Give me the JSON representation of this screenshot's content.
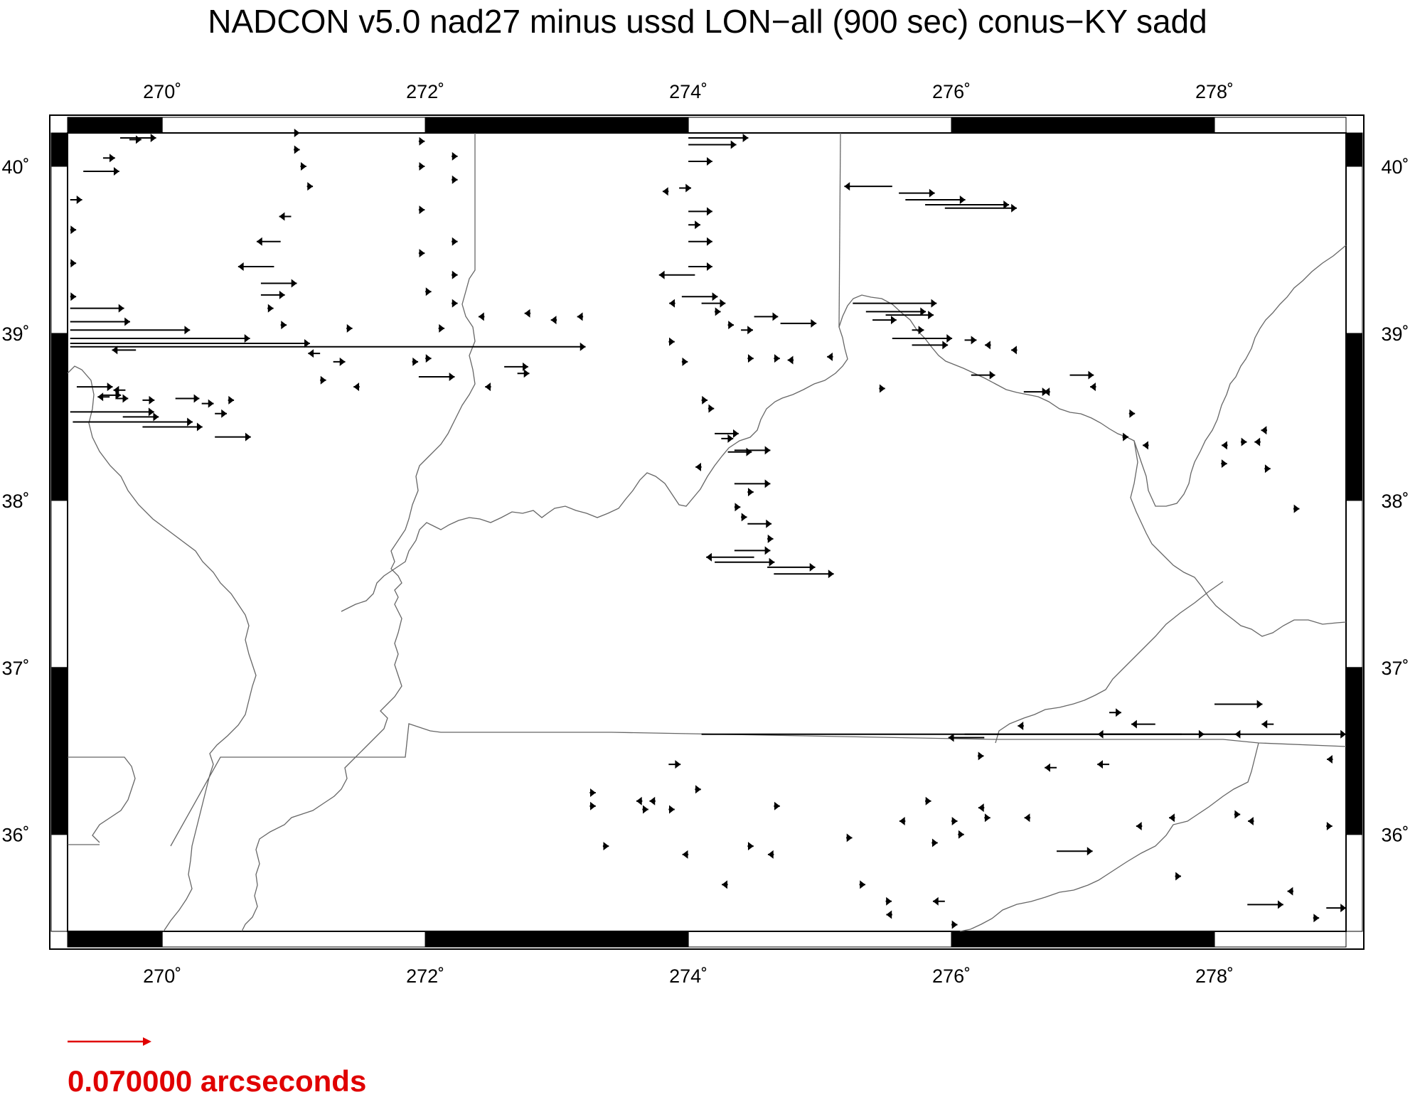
{
  "title": "NADCON v5.0 nad27 minus ussd LON−all (900 sec) conus−KY sadd",
  "map": {
    "lon_range": [
      269.28,
      279.0
    ],
    "lat_range": [
      35.42,
      40.2
    ],
    "lon_ticks": [
      270,
      272,
      274,
      276,
      278
    ],
    "lat_ticks": [
      36,
      37,
      38,
      39,
      40
    ],
    "lon_tick_labels": [
      "270˚",
      "272˚",
      "274˚",
      "276˚",
      "278˚"
    ],
    "lat_tick_labels": [
      "36˚",
      "37˚",
      "38˚",
      "39˚",
      "40˚"
    ],
    "frame_segments_lon": [
      269.28,
      270,
      272,
      274,
      276,
      278,
      279.0
    ],
    "frame_segments_lat": [
      35.42,
      36,
      37,
      38,
      39,
      40,
      40.2
    ],
    "arrow_color": "#000000",
    "boundary_color": "#666666"
  },
  "legend": {
    "scale_value_arcsec": 0.07,
    "scale_label": "0.070000 arcseconds",
    "color": "#e00000"
  },
  "vectors": [
    [
      269.68,
      40.17,
      0.03
    ],
    [
      269.75,
      40.16,
      0.01
    ],
    [
      269.55,
      40.05,
      0.01
    ],
    [
      269.4,
      39.97,
      0.03
    ],
    [
      269.3,
      39.8,
      0.01
    ],
    [
      269.3,
      39.62,
      0.005
    ],
    [
      269.3,
      39.42,
      0.005
    ],
    [
      269.3,
      39.22,
      0.005
    ],
    [
      269.3,
      39.15,
      0.045
    ],
    [
      269.3,
      39.07,
      0.05
    ],
    [
      269.3,
      39.02,
      0.1
    ],
    [
      269.3,
      38.97,
      0.15
    ],
    [
      269.3,
      38.94,
      0.2
    ],
    [
      269.3,
      38.92,
      0.43
    ],
    [
      269.8,
      38.9,
      -0.02
    ],
    [
      269.35,
      38.68,
      0.03
    ],
    [
      269.55,
      38.63,
      0.015
    ],
    [
      269.6,
      38.62,
      -0.01
    ],
    [
      269.65,
      38.61,
      0.01
    ],
    [
      269.72,
      38.66,
      -0.01
    ],
    [
      269.3,
      38.53,
      0.07
    ],
    [
      269.32,
      38.47,
      0.1
    ],
    [
      269.7,
      38.5,
      0.03
    ],
    [
      269.85,
      38.44,
      0.05
    ],
    [
      270.4,
      38.38,
      0.03
    ],
    [
      269.85,
      38.6,
      0.01
    ],
    [
      270.1,
      38.61,
      0.02
    ],
    [
      270.3,
      38.58,
      0.01
    ],
    [
      270.5,
      38.6,
      0.005
    ],
    [
      270.4,
      38.52,
      0.01
    ],
    [
      271.0,
      40.2,
      0.005
    ],
    [
      271.0,
      40.1,
      0.005
    ],
    [
      271.05,
      40.0,
      0.005
    ],
    [
      271.1,
      39.88,
      0.005
    ],
    [
      270.98,
      39.7,
      -0.01
    ],
    [
      270.9,
      39.55,
      -0.02
    ],
    [
      270.85,
      39.4,
      -0.03
    ],
    [
      270.75,
      39.3,
      0.03
    ],
    [
      270.75,
      39.23,
      0.02
    ],
    [
      270.8,
      39.15,
      0.005
    ],
    [
      270.9,
      39.05,
      0.005
    ],
    [
      271.4,
      39.03,
      0.005
    ],
    [
      271.2,
      38.88,
      -0.01
    ],
    [
      271.3,
      38.83,
      0.01
    ],
    [
      271.2,
      38.72,
      0.005
    ],
    [
      271.5,
      38.68,
      -0.005
    ],
    [
      271.9,
      38.83,
      0.005
    ],
    [
      271.95,
      38.74,
      0.03
    ],
    [
      272.0,
      38.85,
      0.005
    ],
    [
      271.95,
      40.15,
      0.005
    ],
    [
      271.95,
      40.0,
      0.005
    ],
    [
      272.2,
      40.06,
      0.005
    ],
    [
      272.2,
      39.92,
      0.005
    ],
    [
      271.95,
      39.74,
      0.005
    ],
    [
      271.95,
      39.48,
      0.005
    ],
    [
      272.2,
      39.55,
      0.005
    ],
    [
      272.2,
      39.35,
      0.005
    ],
    [
      272.0,
      39.25,
      0.005
    ],
    [
      272.2,
      39.18,
      0.005
    ],
    [
      272.1,
      39.03,
      0.005
    ],
    [
      272.6,
      38.8,
      0.02
    ],
    [
      272.7,
      38.76,
      0.01
    ],
    [
      272.5,
      38.68,
      -0.005
    ],
    [
      272.45,
      39.1,
      -0.005
    ],
    [
      272.8,
      39.12,
      -0.005
    ],
    [
      273.0,
      39.08,
      -0.005
    ],
    [
      273.2,
      39.1,
      -0.005
    ],
    [
      273.9,
      39.18,
      -0.005
    ],
    [
      273.85,
      38.95,
      0.005
    ],
    [
      273.95,
      38.83,
      0.005
    ],
    [
      274.0,
      40.17,
      0.05
    ],
    [
      274.0,
      40.13,
      0.04
    ],
    [
      274.0,
      40.03,
      0.02
    ],
    [
      273.93,
      39.87,
      0.01
    ],
    [
      273.85,
      39.85,
      -0.005
    ],
    [
      274.0,
      39.73,
      0.02
    ],
    [
      274.0,
      39.65,
      0.01
    ],
    [
      274.0,
      39.55,
      0.02
    ],
    [
      274.0,
      39.4,
      0.02
    ],
    [
      274.05,
      39.35,
      -0.03
    ],
    [
      273.95,
      39.22,
      0.03
    ],
    [
      274.1,
      39.18,
      0.02
    ],
    [
      274.2,
      39.13,
      0.005
    ],
    [
      274.3,
      39.05,
      0.005
    ],
    [
      274.4,
      39.02,
      0.01
    ],
    [
      274.5,
      39.1,
      0.02
    ],
    [
      274.7,
      39.06,
      0.03
    ],
    [
      274.45,
      38.85,
      0.005
    ],
    [
      274.65,
      38.85,
      0.005
    ],
    [
      274.8,
      38.84,
      -0.005
    ],
    [
      274.1,
      38.6,
      0.005
    ],
    [
      274.15,
      38.55,
      0.005
    ],
    [
      274.2,
      38.4,
      0.02
    ],
    [
      274.25,
      38.37,
      0.01
    ],
    [
      274.3,
      38.29,
      0.02
    ],
    [
      274.35,
      38.3,
      0.03
    ],
    [
      274.1,
      38.2,
      -0.005
    ],
    [
      274.35,
      38.1,
      0.03
    ],
    [
      274.45,
      38.05,
      0.005
    ],
    [
      274.35,
      37.96,
      0.005
    ],
    [
      274.4,
      37.9,
      0.005
    ],
    [
      274.45,
      37.86,
      0.02
    ],
    [
      274.6,
      37.77,
      0.005
    ],
    [
      274.35,
      37.7,
      0.03
    ],
    [
      274.5,
      37.66,
      -0.04
    ],
    [
      274.2,
      37.63,
      0.05
    ],
    [
      274.6,
      37.6,
      0.04
    ],
    [
      274.65,
      37.56,
      0.05
    ],
    [
      275.1,
      38.86,
      -0.005
    ],
    [
      275.45,
      38.67,
      0.005
    ],
    [
      275.6,
      39.84,
      0.03
    ],
    [
      275.65,
      39.8,
      0.05
    ],
    [
      275.8,
      39.77,
      0.07
    ],
    [
      275.95,
      39.75,
      0.06
    ],
    [
      275.55,
      39.88,
      -0.04
    ],
    [
      275.25,
      39.18,
      0.07
    ],
    [
      275.35,
      39.13,
      0.05
    ],
    [
      275.5,
      39.11,
      0.04
    ],
    [
      275.4,
      39.08,
      0.02
    ],
    [
      275.7,
      39.02,
      0.01
    ],
    [
      275.55,
      38.97,
      0.05
    ],
    [
      275.7,
      38.93,
      0.03
    ],
    [
      276.1,
      38.96,
      0.01
    ],
    [
      276.15,
      38.75,
      0.02
    ],
    [
      276.3,
      38.93,
      -0.005
    ],
    [
      276.5,
      38.9,
      -0.005
    ],
    [
      276.55,
      38.65,
      0.02
    ],
    [
      276.75,
      38.65,
      -0.005
    ],
    [
      276.9,
      38.75,
      0.02
    ],
    [
      277.1,
      38.68,
      -0.005
    ],
    [
      277.35,
      38.52,
      0.005
    ],
    [
      277.3,
      38.38,
      0.005
    ],
    [
      277.5,
      38.33,
      -0.005
    ],
    [
      278.05,
      38.22,
      0.005
    ],
    [
      278.1,
      38.33,
      -0.005
    ],
    [
      278.2,
      38.35,
      0.005
    ],
    [
      278.35,
      38.35,
      -0.005
    ],
    [
      278.4,
      38.42,
      -0.005
    ],
    [
      278.38,
      38.19,
      0.005
    ],
    [
      278.6,
      37.95,
      0.005
    ],
    [
      274.1,
      36.6,
      0.6
    ],
    [
      276.1,
      36.6,
      0.2
    ],
    [
      276.25,
      36.58,
      -0.03
    ],
    [
      276.55,
      36.65,
      -0.005
    ],
    [
      277.2,
      36.73,
      0.01
    ],
    [
      277.55,
      36.66,
      -0.02
    ],
    [
      278.0,
      36.78,
      0.04
    ],
    [
      278.2,
      36.6,
      -0.005
    ],
    [
      278.45,
      36.66,
      -0.01
    ],
    [
      276.2,
      36.47,
      0.005
    ],
    [
      276.8,
      36.4,
      -0.01
    ],
    [
      277.2,
      36.42,
      -0.01
    ],
    [
      277.75,
      36.6,
      -0.07
    ],
    [
      273.85,
      36.42,
      0.01
    ],
    [
      274.05,
      36.27,
      0.005
    ],
    [
      273.25,
      36.25,
      0.005
    ],
    [
      273.25,
      36.17,
      0.005
    ],
    [
      273.65,
      36.2,
      -0.005
    ],
    [
      273.75,
      36.2,
      -0.005
    ],
    [
      273.65,
      36.15,
      0.005
    ],
    [
      273.85,
      36.15,
      0.005
    ],
    [
      274.65,
      36.17,
      0.005
    ],
    [
      273.35,
      35.93,
      0.005
    ],
    [
      274.0,
      35.88,
      -0.005
    ],
    [
      274.45,
      35.93,
      0.005
    ],
    [
      274.65,
      35.88,
      -0.005
    ],
    [
      274.3,
      35.7,
      -0.005
    ],
    [
      275.2,
      35.98,
      0.005
    ],
    [
      275.65,
      36.08,
      -0.005
    ],
    [
      275.8,
      36.2,
      0.005
    ],
    [
      276.0,
      36.08,
      0.005
    ],
    [
      276.05,
      36.0,
      0.005
    ],
    [
      276.25,
      36.16,
      -0.005
    ],
    [
      276.25,
      36.1,
      0.005
    ],
    [
      276.6,
      36.1,
      -0.005
    ],
    [
      276.8,
      35.9,
      0.03
    ],
    [
      277.45,
      36.05,
      -0.005
    ],
    [
      277.7,
      36.1,
      -0.005
    ],
    [
      278.3,
      36.08,
      -0.005
    ],
    [
      278.15,
      36.12,
      0.005
    ],
    [
      278.85,
      36.05,
      0.005
    ],
    [
      277.7,
      35.75,
      0.005
    ],
    [
      278.25,
      35.58,
      0.03
    ],
    [
      278.6,
      35.66,
      -0.005
    ],
    [
      278.85,
      35.56,
      0.02
    ],
    [
      278.75,
      35.5,
      0.005
    ],
    [
      278.9,
      36.45,
      -0.005
    ],
    [
      275.85,
      35.95,
      0.005
    ],
    [
      275.3,
      35.7,
      0.005
    ],
    [
      275.5,
      35.6,
      0.005
    ],
    [
      275.55,
      35.52,
      -0.005
    ],
    [
      275.95,
      35.6,
      -0.01
    ],
    [
      276.0,
      35.46,
      0.005
    ]
  ]
}
